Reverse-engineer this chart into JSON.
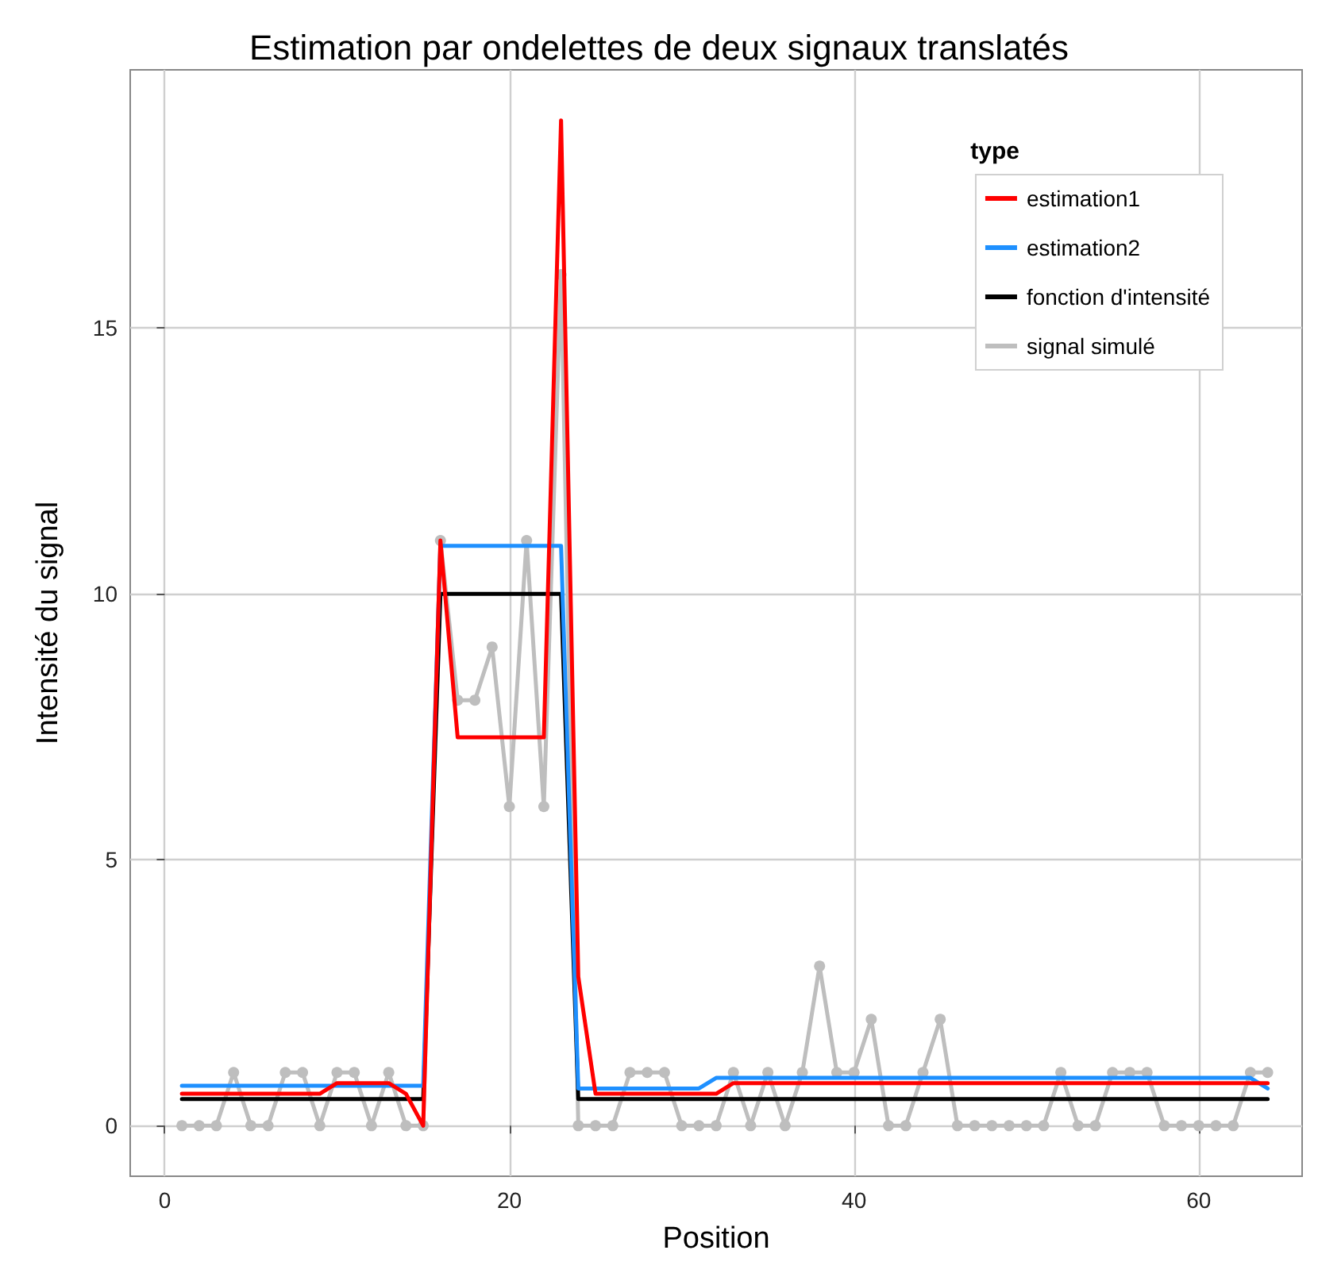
{
  "chart_data": {
    "type": "line",
    "title": "Estimation par ondelettes de deux signaux translatés",
    "xlabel": "Position",
    "ylabel": "Intensité du signal",
    "legend_title": "type",
    "x": [
      1,
      2,
      3,
      4,
      5,
      6,
      7,
      8,
      9,
      10,
      11,
      12,
      13,
      14,
      15,
      16,
      17,
      18,
      19,
      20,
      21,
      22,
      23,
      24,
      25,
      26,
      27,
      28,
      29,
      30,
      31,
      32,
      33,
      34,
      35,
      36,
      37,
      38,
      39,
      40,
      41,
      42,
      43,
      44,
      45,
      46,
      47,
      48,
      49,
      50,
      51,
      52,
      53,
      54,
      55,
      56,
      57,
      58,
      59,
      60,
      61,
      62,
      63,
      64
    ],
    "series": [
      {
        "name": "estimation1",
        "color": "#ff0000",
        "marker": "none",
        "values": [
          0.6,
          0.6,
          0.6,
          0.6,
          0.6,
          0.6,
          0.6,
          0.6,
          0.6,
          0.8,
          0.8,
          0.8,
          0.8,
          0.6,
          0,
          11,
          7.3,
          7.3,
          7.3,
          7.3,
          7.3,
          7.3,
          18.9,
          2.8,
          0.6,
          0.6,
          0.6,
          0.6,
          0.6,
          0.6,
          0.6,
          0.6,
          0.8,
          0.8,
          0.8,
          0.8,
          0.8,
          0.8,
          0.8,
          0.8,
          0.8,
          0.8,
          0.8,
          0.8,
          0.8,
          0.8,
          0.8,
          0.8,
          0.8,
          0.8,
          0.8,
          0.8,
          0.8,
          0.8,
          0.8,
          0.8,
          0.8,
          0.8,
          0.8,
          0.8,
          0.8,
          0.8,
          0.8,
          0.8
        ]
      },
      {
        "name": "estimation2",
        "color": "#1e90ff",
        "marker": "none",
        "values": [
          0.75,
          0.75,
          0.75,
          0.75,
          0.75,
          0.75,
          0.75,
          0.75,
          0.75,
          0.75,
          0.75,
          0.75,
          0.75,
          0.75,
          0.75,
          10.9,
          10.9,
          10.9,
          10.9,
          10.9,
          10.9,
          10.9,
          10.9,
          0.7,
          0.7,
          0.7,
          0.7,
          0.7,
          0.7,
          0.7,
          0.7,
          0.9,
          0.9,
          0.9,
          0.9,
          0.9,
          0.9,
          0.9,
          0.9,
          0.9,
          0.9,
          0.9,
          0.9,
          0.9,
          0.9,
          0.9,
          0.9,
          0.9,
          0.9,
          0.9,
          0.9,
          0.9,
          0.9,
          0.9,
          0.9,
          0.9,
          0.9,
          0.9,
          0.9,
          0.9,
          0.9,
          0.9,
          0.9,
          0.7
        ]
      },
      {
        "name": "fonction d'intensité",
        "color": "#000000",
        "marker": "none",
        "values": [
          0.5,
          0.5,
          0.5,
          0.5,
          0.5,
          0.5,
          0.5,
          0.5,
          0.5,
          0.5,
          0.5,
          0.5,
          0.5,
          0.5,
          0.5,
          10,
          10,
          10,
          10,
          10,
          10,
          10,
          10,
          0.5,
          0.5,
          0.5,
          0.5,
          0.5,
          0.5,
          0.5,
          0.5,
          0.5,
          0.5,
          0.5,
          0.5,
          0.5,
          0.5,
          0.5,
          0.5,
          0.5,
          0.5,
          0.5,
          0.5,
          0.5,
          0.5,
          0.5,
          0.5,
          0.5,
          0.5,
          0.5,
          0.5,
          0.5,
          0.5,
          0.5,
          0.5,
          0.5,
          0.5,
          0.5,
          0.5,
          0.5,
          0.5,
          0.5,
          0.5,
          0.5
        ]
      },
      {
        "name": "signal simulé",
        "color": "#bebebe",
        "marker": "circle",
        "values": [
          0,
          0,
          0,
          1,
          0,
          0,
          1,
          1,
          0,
          1,
          1,
          0,
          1,
          0,
          0,
          11,
          8,
          8,
          9,
          6,
          11,
          6,
          16,
          0,
          0,
          0,
          1,
          1,
          1,
          0,
          0,
          0,
          1,
          0,
          1,
          0,
          1,
          3,
          1,
          1,
          2,
          0,
          0,
          1,
          2,
          0,
          0,
          0,
          0,
          0,
          0,
          1,
          0,
          0,
          1,
          1,
          1,
          0,
          0,
          0,
          0,
          0,
          1,
          1
        ]
      }
    ],
    "xlim": [
      -2,
      66
    ],
    "ylim": [
      -0.95,
      19.85
    ],
    "xticks": [
      0,
      20,
      40,
      60
    ],
    "yticks": [
      0,
      5,
      10,
      15
    ],
    "grid": true,
    "legend": "top right",
    "line_style": "solid"
  }
}
